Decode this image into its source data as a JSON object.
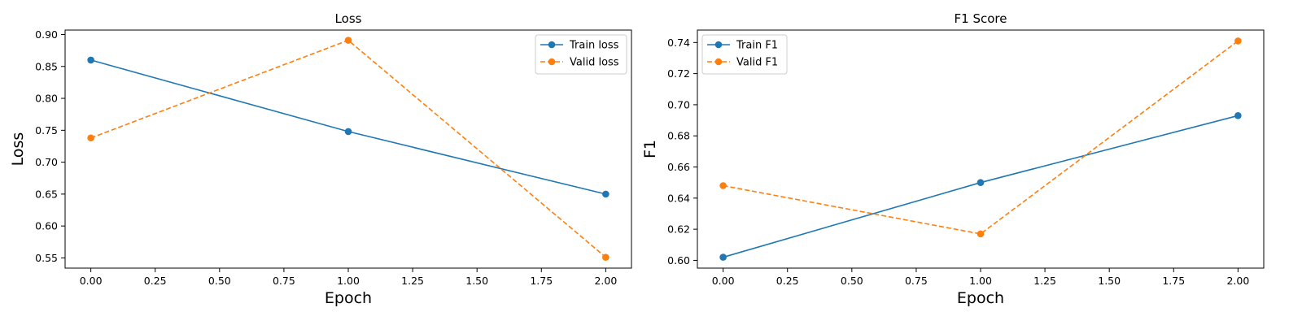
{
  "chart_data": [
    {
      "type": "line",
      "title": "Loss",
      "xlabel": "Epoch",
      "ylabel": "Loss",
      "xlim": [
        -0.1,
        2.1
      ],
      "ylim": [
        0.534,
        0.907
      ],
      "xticks": [
        "0.00",
        "0.25",
        "0.50",
        "0.75",
        "1.00",
        "1.25",
        "1.50",
        "1.75",
        "2.00"
      ],
      "yticks": [
        "0.55",
        "0.60",
        "0.65",
        "0.70",
        "0.75",
        "0.80",
        "0.85",
        "0.90"
      ],
      "legend": "top-right",
      "grid": false,
      "series": [
        {
          "name": "Train loss",
          "x": [
            0,
            1,
            2
          ],
          "y": [
            0.86,
            0.748,
            0.65
          ],
          "color": "#1f77b4",
          "dash": "solid",
          "marker": "circle"
        },
        {
          "name": "Valid loss",
          "x": [
            0,
            1,
            2
          ],
          "y": [
            0.738,
            0.891,
            0.551
          ],
          "color": "#ff7f0e",
          "dash": "dashed",
          "marker": "circle"
        }
      ]
    },
    {
      "type": "line",
      "title": "F1 Score",
      "xlabel": "Epoch",
      "ylabel": "F1",
      "xlim": [
        -0.1,
        2.1
      ],
      "ylim": [
        0.595,
        0.748
      ],
      "xticks": [
        "0.00",
        "0.25",
        "0.50",
        "0.75",
        "1.00",
        "1.25",
        "1.50",
        "1.75",
        "2.00"
      ],
      "yticks": [
        "0.60",
        "0.62",
        "0.64",
        "0.66",
        "0.68",
        "0.70",
        "0.72",
        "0.74"
      ],
      "legend": "top-left",
      "grid": false,
      "series": [
        {
          "name": "Train F1",
          "x": [
            0,
            1,
            2
          ],
          "y": [
            0.602,
            0.65,
            0.693
          ],
          "color": "#1f77b4",
          "dash": "solid",
          "marker": "circle"
        },
        {
          "name": "Valid F1",
          "x": [
            0,
            1,
            2
          ],
          "y": [
            0.648,
            0.617,
            0.741
          ],
          "color": "#ff7f0e",
          "dash": "dashed",
          "marker": "circle"
        }
      ]
    }
  ]
}
